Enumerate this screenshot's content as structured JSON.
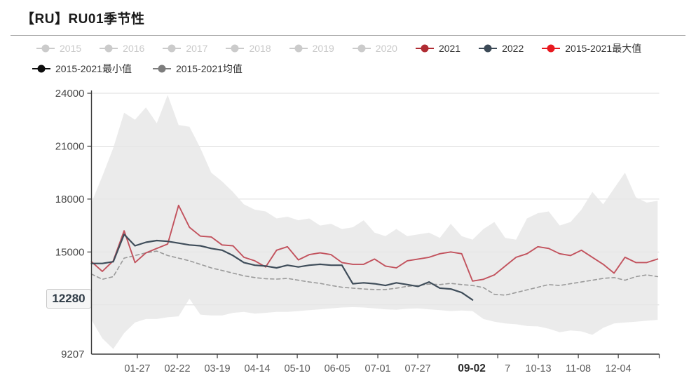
{
  "title": "【RU】RU01季节性",
  "legend": {
    "rows": [
      [
        {
          "label": "2015",
          "color": "#cbcbcb",
          "disabled": true
        },
        {
          "label": "2016",
          "color": "#cbcbcb",
          "disabled": true
        },
        {
          "label": "2017",
          "color": "#cbcbcb",
          "disabled": true
        },
        {
          "label": "2018",
          "color": "#cbcbcb",
          "disabled": true
        },
        {
          "label": "2019",
          "color": "#cbcbcb",
          "disabled": true
        },
        {
          "label": "2020",
          "color": "#cbcbcb",
          "disabled": true
        },
        {
          "label": "2021",
          "color": "#b02c33",
          "disabled": false
        },
        {
          "label": "2022",
          "color": "#3c4a57",
          "disabled": false
        },
        {
          "label": "2015-2021最大值",
          "color": "#e8191f",
          "disabled": false
        }
      ],
      [
        {
          "label": "2015-2021最小值",
          "color": "#0d0d0d",
          "disabled": false
        },
        {
          "label": "2015-2021均值",
          "color": "#7d7d7d",
          "disabled": false
        }
      ]
    ]
  },
  "y_axis": {
    "tick_labels": [
      "24000",
      "21000",
      "18000",
      "15000",
      "12000"
    ],
    "tick_values": [
      24000,
      21000,
      18000,
      15000,
      12000
    ],
    "min_label": "9207",
    "min_value": 9207,
    "max_value": 24000
  },
  "x_axis": {
    "tick_days": [
      29.5,
      55.2,
      80.9,
      106.6,
      132.3,
      158,
      184.1,
      209.8,
      235.5,
      261.2,
      287.3,
      313,
      338.7,
      365
    ],
    "labels": [
      {
        "text": "01-27",
        "day": 29.5,
        "bold": false
      },
      {
        "text": "02-22",
        "day": 55.2,
        "bold": false
      },
      {
        "text": "03-19",
        "day": 80.9,
        "bold": false
      },
      {
        "text": "04-14",
        "day": 106.6,
        "bold": false
      },
      {
        "text": "05-10",
        "day": 132.3,
        "bold": false
      },
      {
        "text": "06-05",
        "day": 158,
        "bold": false
      },
      {
        "text": "07-01",
        "day": 184.1,
        "bold": false
      },
      {
        "text": "07-27",
        "day": 209.8,
        "bold": false
      },
      {
        "text": "09-02",
        "day": 244.5,
        "bold": true
      },
      {
        "text": "7",
        "day": 267.5,
        "bold": false
      },
      {
        "text": "10-13",
        "day": 287.3,
        "bold": false
      },
      {
        "text": "11-08",
        "day": 313,
        "bold": false
      },
      {
        "text": "12-04",
        "day": 338.7,
        "bold": false
      }
    ]
  },
  "current_value": {
    "text": "12280",
    "value": 12280
  },
  "chart_data": {
    "type": "line",
    "title": "【RU】RU01季节性",
    "x_unit": "day_of_year",
    "ylim": [
      9207,
      24000
    ],
    "grid_values": [
      12000,
      15000,
      18000,
      21000,
      24000
    ],
    "band": {
      "name": "2015-2021最大值/最小值范围",
      "fill": "#e7e7e7",
      "opacity": 0.82,
      "days": [
        0,
        7,
        14,
        21,
        28,
        35,
        42,
        49,
        56,
        63,
        70,
        77,
        84,
        91,
        98,
        105,
        112,
        119,
        126,
        133,
        140,
        147,
        154,
        161,
        168,
        175,
        182,
        189,
        196,
        203,
        210,
        217,
        224,
        231,
        238,
        245,
        252,
        259,
        266,
        273,
        280,
        287,
        294,
        301,
        308,
        315,
        322,
        329,
        336,
        343,
        350,
        357,
        364
      ],
      "max": [
        17800,
        19300,
        20900,
        22900,
        22500,
        23200,
        22300,
        23900,
        22200,
        22100,
        20900,
        19500,
        19000,
        18400,
        17700,
        17400,
        17300,
        16900,
        17000,
        16800,
        16900,
        16500,
        16600,
        16300,
        16400,
        16800,
        16100,
        15900,
        16300,
        15900,
        16000,
        16100,
        15800,
        16600,
        15900,
        15700,
        16300,
        16700,
        15800,
        15700,
        16900,
        17200,
        17300,
        16500,
        16700,
        17400,
        18400,
        17700,
        18600,
        19500,
        18100,
        17800,
        17900
      ],
      "min": [
        11150,
        10100,
        9500,
        10400,
        11000,
        11200,
        11200,
        11300,
        11350,
        12350,
        11450,
        11400,
        11400,
        11550,
        11600,
        11500,
        11550,
        11600,
        11600,
        11650,
        11700,
        11750,
        11800,
        11850,
        11870,
        11850,
        11800,
        11750,
        11720,
        11780,
        11800,
        11750,
        11700,
        11650,
        11680,
        11650,
        11200,
        11050,
        10950,
        10900,
        10800,
        10780,
        10650,
        10450,
        10550,
        10500,
        10300,
        10700,
        10950,
        11000,
        11050,
        11100,
        11150
      ]
    },
    "series": [
      {
        "name": "2015-2021均值",
        "color": "#9a9a9a",
        "width": 1.6,
        "dash": "5,4",
        "days": [
          0,
          7,
          14,
          21,
          28,
          35,
          42,
          49,
          56,
          63,
          70,
          77,
          84,
          91,
          98,
          105,
          112,
          119,
          126,
          133,
          140,
          147,
          154,
          161,
          168,
          175,
          182,
          189,
          196,
          203,
          210,
          217,
          224,
          231,
          238,
          245,
          252,
          259,
          266,
          273,
          280,
          287,
          294,
          301,
          308,
          315,
          322,
          329,
          336,
          343,
          350,
          357,
          364
        ],
        "values": [
          13750,
          13450,
          13600,
          14650,
          14800,
          14950,
          15050,
          14800,
          14650,
          14500,
          14300,
          14100,
          13950,
          13800,
          13650,
          13550,
          13480,
          13460,
          13500,
          13400,
          13300,
          13220,
          13100,
          13000,
          12950,
          12900,
          12870,
          12870,
          12950,
          13050,
          13100,
          13180,
          13150,
          13220,
          13150,
          13100,
          12980,
          12600,
          12550,
          12700,
          12850,
          13000,
          13150,
          13100,
          13200,
          13300,
          13400,
          13500,
          13550,
          13400,
          13600,
          13700,
          13600
        ]
      },
      {
        "name": "2021",
        "color": "#c2525d",
        "width": 1.9,
        "dash": "",
        "days": [
          0,
          7,
          14,
          21,
          28,
          35,
          42,
          49,
          56,
          63,
          70,
          77,
          84,
          91,
          98,
          105,
          112,
          119,
          126,
          133,
          140,
          147,
          154,
          161,
          168,
          175,
          182,
          189,
          196,
          203,
          210,
          217,
          224,
          231,
          238,
          245,
          252,
          259,
          266,
          273,
          280,
          287,
          294,
          301,
          308,
          315,
          322,
          329,
          336,
          343,
          350,
          357,
          364
        ],
        "values": [
          14450,
          13900,
          14500,
          16200,
          14400,
          14950,
          15200,
          15450,
          17640,
          16400,
          15900,
          15850,
          15400,
          15350,
          14700,
          14500,
          14150,
          15100,
          15300,
          14550,
          14850,
          14950,
          14850,
          14400,
          14300,
          14300,
          14600,
          14200,
          14100,
          14500,
          14600,
          14700,
          14900,
          15000,
          14900,
          13350,
          13450,
          13700,
          14200,
          14700,
          14900,
          15300,
          15200,
          14900,
          14800,
          15100,
          14700,
          14300,
          13800,
          14700,
          14400,
          14400,
          14600
        ]
      },
      {
        "name": "2022",
        "color": "#3f4d5a",
        "width": 2.2,
        "dash": "",
        "days": [
          0,
          7,
          14,
          21,
          28,
          35,
          42,
          49,
          56,
          63,
          70,
          77,
          84,
          91,
          98,
          105,
          112,
          119,
          126,
          133,
          140,
          147,
          154,
          161,
          168,
          175,
          182,
          189,
          196,
          203,
          210,
          217,
          224,
          231,
          238,
          245
        ],
        "values": [
          14350,
          14350,
          14450,
          16000,
          15350,
          15550,
          15650,
          15600,
          15500,
          15400,
          15350,
          15200,
          15100,
          14800,
          14400,
          14250,
          14200,
          14100,
          14250,
          14150,
          14250,
          14300,
          14250,
          14250,
          13200,
          13250,
          13200,
          13100,
          13250,
          13150,
          13050,
          13300,
          12950,
          12900,
          12700,
          12280
        ]
      }
    ]
  }
}
